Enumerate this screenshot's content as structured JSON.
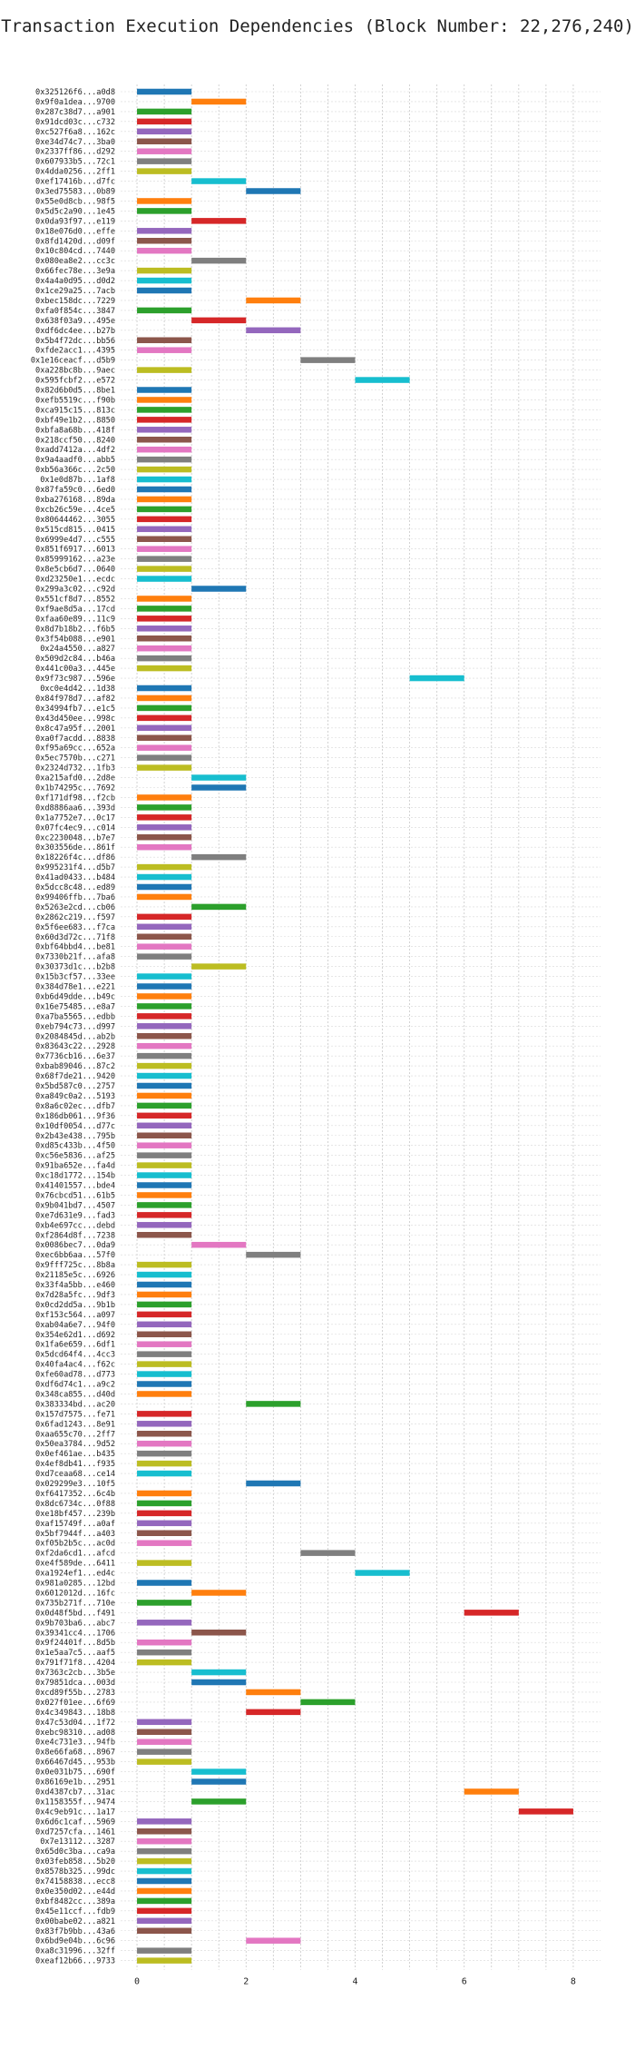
{
  "chart_data": {
    "type": "gantt",
    "title": "Transaction Execution Dependencies (Block Number: 22,276,240)",
    "xlim": [
      -0.3,
      8.5
    ],
    "xticks": [
      0,
      2,
      4,
      6,
      8
    ],
    "grid": true,
    "palette": [
      "#1f77b4",
      "#ff7f0e",
      "#2ca02c",
      "#d62728",
      "#9467bd",
      "#8c564b",
      "#e377c2",
      "#7f7f7f",
      "#bcbd22",
      "#17becf"
    ],
    "transactions": [
      {
        "hash": "0x325126f6...a0d8",
        "start": 0
      },
      {
        "hash": "0x9f0a1dea...9700",
        "start": 1
      },
      {
        "hash": "0x287c38d7...a901",
        "start": 0
      },
      {
        "hash": "0x91dcd03c...c732",
        "start": 0
      },
      {
        "hash": "0xc527f6a8...162c",
        "start": 0
      },
      {
        "hash": "0xe34d74c7...3ba0",
        "start": 0
      },
      {
        "hash": "0x2337ff86...d292",
        "start": 0
      },
      {
        "hash": "0x607933b5...72c1",
        "start": 0
      },
      {
        "hash": "0x4dda0256...2ff1",
        "start": 0
      },
      {
        "hash": "0xef17416b...d7fc",
        "start": 1
      },
      {
        "hash": "0x3ed75583...0b89",
        "start": 2
      },
      {
        "hash": "0x55e0d8cb...98f5",
        "start": 0
      },
      {
        "hash": "0x5d5c2a90...1e45",
        "start": 0
      },
      {
        "hash": "0x0da93f97...e119",
        "start": 1
      },
      {
        "hash": "0x18e076d0...effe",
        "start": 0
      },
      {
        "hash": "0x8fd1420d...d09f",
        "start": 0
      },
      {
        "hash": "0x10c804cd...7440",
        "start": 0
      },
      {
        "hash": "0x080ea8e2...cc3c",
        "start": 1
      },
      {
        "hash": "0x66fec78e...3e9a",
        "start": 0
      },
      {
        "hash": "0x4a4a0d95...d0d2",
        "start": 0
      },
      {
        "hash": "0x1ce29a25...7acb",
        "start": 0
      },
      {
        "hash": "0xbec158dc...7229",
        "start": 2
      },
      {
        "hash": "0xfa0f854c...3847",
        "start": 0
      },
      {
        "hash": "0x638f03a9...495e",
        "start": 1
      },
      {
        "hash": "0xdf6dc4ee...b27b",
        "start": 2
      },
      {
        "hash": "0x5b4f72dc...bb56",
        "start": 0
      },
      {
        "hash": "0xfde2acc1...4395",
        "start": 0
      },
      {
        "hash": "0x1e16ceacf...d5b9",
        "start": 3
      },
      {
        "hash": "0xa228bc8b...9aec",
        "start": 0
      },
      {
        "hash": "0x595fcbf2...e572",
        "start": 4
      },
      {
        "hash": "0x82d6b0d5...8be1",
        "start": 0
      },
      {
        "hash": "0xefb5519c...f90b",
        "start": 0
      },
      {
        "hash": "0xca915c15...813c",
        "start": 0
      },
      {
        "hash": "0xbf49e1b2...8850",
        "start": 0
      },
      {
        "hash": "0xbfa8a68b...418f",
        "start": 0
      },
      {
        "hash": "0x218ccf50...8240",
        "start": 0
      },
      {
        "hash": "0xadd7412a...4df2",
        "start": 0
      },
      {
        "hash": "0x9a4aadf0...abb5",
        "start": 0
      },
      {
        "hash": "0xb56a366c...2c50",
        "start": 0
      },
      {
        "hash": "0x1e0d87b...1af8",
        "start": 0
      },
      {
        "hash": "0x87fa59c0...6ed0",
        "start": 0
      },
      {
        "hash": "0xba276168...89da",
        "start": 0
      },
      {
        "hash": "0xcb26c59e...4ce5",
        "start": 0
      },
      {
        "hash": "0x80644462...3055",
        "start": 0
      },
      {
        "hash": "0x515cd815...0415",
        "start": 0
      },
      {
        "hash": "0x6999e4d7...c555",
        "start": 0
      },
      {
        "hash": "0x851f6917...6013",
        "start": 0
      },
      {
        "hash": "0x85999162...a23e",
        "start": 0
      },
      {
        "hash": "0x8e5cb6d7...0640",
        "start": 0
      },
      {
        "hash": "0xd23250e1...ecdc",
        "start": 0
      },
      {
        "hash": "0x299a3c02...c92d",
        "start": 1
      },
      {
        "hash": "0x551cf8d7...8552",
        "start": 0
      },
      {
        "hash": "0xf9ae8d5a...17cd",
        "start": 0
      },
      {
        "hash": "0xfaa60e89...11c9",
        "start": 0
      },
      {
        "hash": "0x8d7b18b2...f6b5",
        "start": 0
      },
      {
        "hash": "0x3f54b088...e901",
        "start": 0
      },
      {
        "hash": "0x24a4550...a827",
        "start": 0
      },
      {
        "hash": "0x509d2c84...b46a",
        "start": 0
      },
      {
        "hash": "0x441c00a3...445e",
        "start": 0
      },
      {
        "hash": "0x9f73c987...596e",
        "start": 5
      },
      {
        "hash": "0xc0e4d42...1d38",
        "start": 0
      },
      {
        "hash": "0x84f978d7...af82",
        "start": 0
      },
      {
        "hash": "0x34994fb7...e1c5",
        "start": 0
      },
      {
        "hash": "0x43d450ee...998c",
        "start": 0
      },
      {
        "hash": "0x8c47a95f...2001",
        "start": 0
      },
      {
        "hash": "0xa0f7acdd...8838",
        "start": 0
      },
      {
        "hash": "0xf95a69cc...652a",
        "start": 0
      },
      {
        "hash": "0x5ec7570b...c271",
        "start": 0
      },
      {
        "hash": "0x2324d732...1fb3",
        "start": 0
      },
      {
        "hash": "0xa215afd0...2d8e",
        "start": 1
      },
      {
        "hash": "0x1b74295c...7692",
        "start": 1
      },
      {
        "hash": "0xf171df98...f2cb",
        "start": 0
      },
      {
        "hash": "0xd8886aa6...393d",
        "start": 0
      },
      {
        "hash": "0x1a7752e7...0c17",
        "start": 0
      },
      {
        "hash": "0x07fc4ec9...c014",
        "start": 0
      },
      {
        "hash": "0xc2230048...b7e7",
        "start": 0
      },
      {
        "hash": "0x303556de...861f",
        "start": 0
      },
      {
        "hash": "0x18226f4c...df86",
        "start": 1
      },
      {
        "hash": "0x995231f4...d5b7",
        "start": 0
      },
      {
        "hash": "0x41ad0433...b484",
        "start": 0
      },
      {
        "hash": "0x5dcc8c48...ed89",
        "start": 0
      },
      {
        "hash": "0x99406ffb...7ba6",
        "start": 0
      },
      {
        "hash": "0x5263e2cd...cb06",
        "start": 1
      },
      {
        "hash": "0x2862c219...f597",
        "start": 0
      },
      {
        "hash": "0x5f6ee683...f7ca",
        "start": 0
      },
      {
        "hash": "0x60d3d72c...71f8",
        "start": 0
      },
      {
        "hash": "0xbf64bbd4...be81",
        "start": 0
      },
      {
        "hash": "0x7330b21f...afa8",
        "start": 0
      },
      {
        "hash": "0x30373d1c...b2b8",
        "start": 1
      },
      {
        "hash": "0x15b3cf57...33ee",
        "start": 0
      },
      {
        "hash": "0x384d78e1...e221",
        "start": 0
      },
      {
        "hash": "0xb6d49dde...b49c",
        "start": 0
      },
      {
        "hash": "0x16e75485...e8a7",
        "start": 0
      },
      {
        "hash": "0xa7ba5565...edbb",
        "start": 0
      },
      {
        "hash": "0xeb794c73...d997",
        "start": 0
      },
      {
        "hash": "0x2084845d...ab2b",
        "start": 0
      },
      {
        "hash": "0x83643c22...2928",
        "start": 0
      },
      {
        "hash": "0x7736cb16...6e37",
        "start": 0
      },
      {
        "hash": "0xbab89046...87c2",
        "start": 0
      },
      {
        "hash": "0x68f7de21...9420",
        "start": 0
      },
      {
        "hash": "0x5bd587c0...2757",
        "start": 0
      },
      {
        "hash": "0xa849c0a2...5193",
        "start": 0
      },
      {
        "hash": "0x8a6c02ec...dfb7",
        "start": 0
      },
      {
        "hash": "0x186db061...9f36",
        "start": 0
      },
      {
        "hash": "0x10df0054...d77c",
        "start": 0
      },
      {
        "hash": "0x2b43e438...795b",
        "start": 0
      },
      {
        "hash": "0xd85c433b...4f50",
        "start": 0
      },
      {
        "hash": "0xc56e5836...af25",
        "start": 0
      },
      {
        "hash": "0x91ba652e...fa4d",
        "start": 0
      },
      {
        "hash": "0xc18d1772...154b",
        "start": 0
      },
      {
        "hash": "0x41401557...bde4",
        "start": 0
      },
      {
        "hash": "0x76cbcd51...61b5",
        "start": 0
      },
      {
        "hash": "0x9b041bd7...4507",
        "start": 0
      },
      {
        "hash": "0xe7d631e9...fad3",
        "start": 0
      },
      {
        "hash": "0xb4e697cc...debd",
        "start": 0
      },
      {
        "hash": "0xf2864d8f...7238",
        "start": 0
      },
      {
        "hash": "0x0086bec7...0da9",
        "start": 1
      },
      {
        "hash": "0xec6bb6aa...57f0",
        "start": 2
      },
      {
        "hash": "0x9fff725c...8b8a",
        "start": 0
      },
      {
        "hash": "0x21185e5c...6926",
        "start": 0
      },
      {
        "hash": "0x33f4a5bb...e460",
        "start": 0
      },
      {
        "hash": "0x7d28a5fc...9df3",
        "start": 0
      },
      {
        "hash": "0x0cd2dd5a...9b1b",
        "start": 0
      },
      {
        "hash": "0xf153c564...a097",
        "start": 0
      },
      {
        "hash": "0xab04a6e7...94f0",
        "start": 0
      },
      {
        "hash": "0x354e62d1...d692",
        "start": 0
      },
      {
        "hash": "0x1fa6e659...6df1",
        "start": 0
      },
      {
        "hash": "0x5dcd64f4...4cc3",
        "start": 0
      },
      {
        "hash": "0x40fa4ac4...f62c",
        "start": 0
      },
      {
        "hash": "0xfe60ad78...d773",
        "start": 0
      },
      {
        "hash": "0xdf6d74c1...a9c2",
        "start": 0
      },
      {
        "hash": "0x348ca855...d40d",
        "start": 0
      },
      {
        "hash": "0x383334bd...ac20",
        "start": 2
      },
      {
        "hash": "0x157d7575...fe71",
        "start": 0
      },
      {
        "hash": "0x6fad1243...8e91",
        "start": 0
      },
      {
        "hash": "0xaa655c70...2ff7",
        "start": 0
      },
      {
        "hash": "0x50ea3784...9d52",
        "start": 0
      },
      {
        "hash": "0x0ef461ae...b435",
        "start": 0
      },
      {
        "hash": "0x4ef8db41...f935",
        "start": 0
      },
      {
        "hash": "0xd7ceaa68...ce14",
        "start": 0
      },
      {
        "hash": "0x029299e3...10f5",
        "start": 2
      },
      {
        "hash": "0xf6417352...6c4b",
        "start": 0
      },
      {
        "hash": "0x8dc6734c...0f88",
        "start": 0
      },
      {
        "hash": "0xe18bf457...239b",
        "start": 0
      },
      {
        "hash": "0xaf15749f...a0af",
        "start": 0
      },
      {
        "hash": "0x5bf7944f...a403",
        "start": 0
      },
      {
        "hash": "0xf05b2b5c...ac0d",
        "start": 0
      },
      {
        "hash": "0xf2da6cd1...afcd",
        "start": 3
      },
      {
        "hash": "0xe4f589de...6411",
        "start": 0
      },
      {
        "hash": "0xa1924ef1...ed4c",
        "start": 4
      },
      {
        "hash": "0x981a0285...12bd",
        "start": 0
      },
      {
        "hash": "0x6012012d...16fc",
        "start": 1
      },
      {
        "hash": "0x735b271f...710e",
        "start": 0
      },
      {
        "hash": "0x0d48f5bd...f491",
        "start": 6
      },
      {
        "hash": "0x9b703ba6...abc7",
        "start": 0
      },
      {
        "hash": "0x39341cc4...1706",
        "start": 1
      },
      {
        "hash": "0x9f24401f...8d5b",
        "start": 0
      },
      {
        "hash": "0x1e5aa7c5...aaf5",
        "start": 0
      },
      {
        "hash": "0x791f71f8...4204",
        "start": 0
      },
      {
        "hash": "0x7363c2cb...3b5e",
        "start": 1
      },
      {
        "hash": "0x79851dca...003d",
        "start": 1
      },
      {
        "hash": "0xcd89f55b...2783",
        "start": 2
      },
      {
        "hash": "0x027f01ee...6f69",
        "start": 3
      },
      {
        "hash": "0x4c349843...18b8",
        "start": 2
      },
      {
        "hash": "0x47c53d04...1f72",
        "start": 0
      },
      {
        "hash": "0xebc98310...ad08",
        "start": 0
      },
      {
        "hash": "0xe4c731e3...94fb",
        "start": 0
      },
      {
        "hash": "0x8e66fa68...8967",
        "start": 0
      },
      {
        "hash": "0x66467d45...953b",
        "start": 0
      },
      {
        "hash": "0x0e031b75...690f",
        "start": 1
      },
      {
        "hash": "0x86169e1b...2951",
        "start": 1
      },
      {
        "hash": "0xd4387cb7...31ac",
        "start": 6
      },
      {
        "hash": "0x1158355f...9474",
        "start": 1
      },
      {
        "hash": "0x4c9eb91c...1a17",
        "start": 7
      },
      {
        "hash": "0x6d6c1caf...5969",
        "start": 0
      },
      {
        "hash": "0xd7257cfa...1461",
        "start": 0
      },
      {
        "hash": "0x7e13112...3287",
        "start": 0
      },
      {
        "hash": "0x65d0c3ba...ca9a",
        "start": 0
      },
      {
        "hash": "0x03feb858...5b20",
        "start": 0
      },
      {
        "hash": "0x8578b325...99dc",
        "start": 0
      },
      {
        "hash": "0x74158838...ecc8",
        "start": 0
      },
      {
        "hash": "0x0e350d02...e44d",
        "start": 0
      },
      {
        "hash": "0xbf8482cc...389a",
        "start": 0
      },
      {
        "hash": "0x45e11ccf...fdb9",
        "start": 0
      },
      {
        "hash": "0x00babe02...a821",
        "start": 0
      },
      {
        "hash": "0x83f7b9bb...43a6",
        "start": 0
      },
      {
        "hash": "0x6bd9e04b...6c96",
        "start": 2
      },
      {
        "hash": "0xa8c31996...32ff",
        "start": 0
      },
      {
        "hash": "0xeaf12b66...9733",
        "start": 0
      }
    ]
  }
}
